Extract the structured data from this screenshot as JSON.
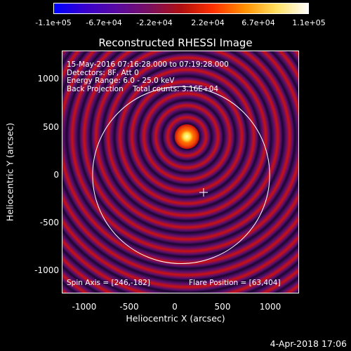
{
  "colorbar": {
    "tick_labels": [
      "-1.1e+05",
      "-6.7e+04",
      "-2.2e+04",
      "2.2e+04",
      "6.7e+04",
      "1.1e+05"
    ],
    "range": [
      -110000,
      110000
    ],
    "colors": [
      "#0000ff",
      "#3a00cc",
      "#5a0aa0",
      "#7a1060",
      "#b01010",
      "#ff3000",
      "#ff9000",
      "#ffe060",
      "#ffffff"
    ]
  },
  "image": {
    "title": "Reconstructed RHESSI Image",
    "info_lines": [
      "15-May-2016 07:16:28.000 to 07:19:28.000",
      "Detectors: 8F, Att 0",
      "Energy Range: 6.0 - 25.0 keV",
      "Back Projection    Total counts: 3.16E+04"
    ],
    "spin_axis": "Spin Axis = [246,-182]",
    "flare_position": "Flare Position = [63,404]",
    "source_center": [
      63,
      404
    ],
    "spin_axis_center": [
      246,
      -182
    ],
    "solar_limb_radius_arcsec": 970,
    "xlabel": "Heliocentric X (arcsec)",
    "ylabel": "Heliocentric Y (arcsec)",
    "xlim": [
      -1300,
      1300
    ],
    "ylim": [
      -1250,
      1300
    ],
    "x_ticks": [
      "-1000",
      "-500",
      "0",
      "500",
      "1000"
    ],
    "y_ticks": [
      "1000",
      "500",
      "0",
      "-500",
      "-1000"
    ],
    "colors": {
      "background": "#5c0f6e",
      "ring_red": "#cc1010",
      "ring_dark": "#1a0630",
      "core_bright": "#ffff80",
      "limb": "#ffffff"
    }
  },
  "footer": {
    "timestamp": "4-Apr-2018 17:06"
  }
}
